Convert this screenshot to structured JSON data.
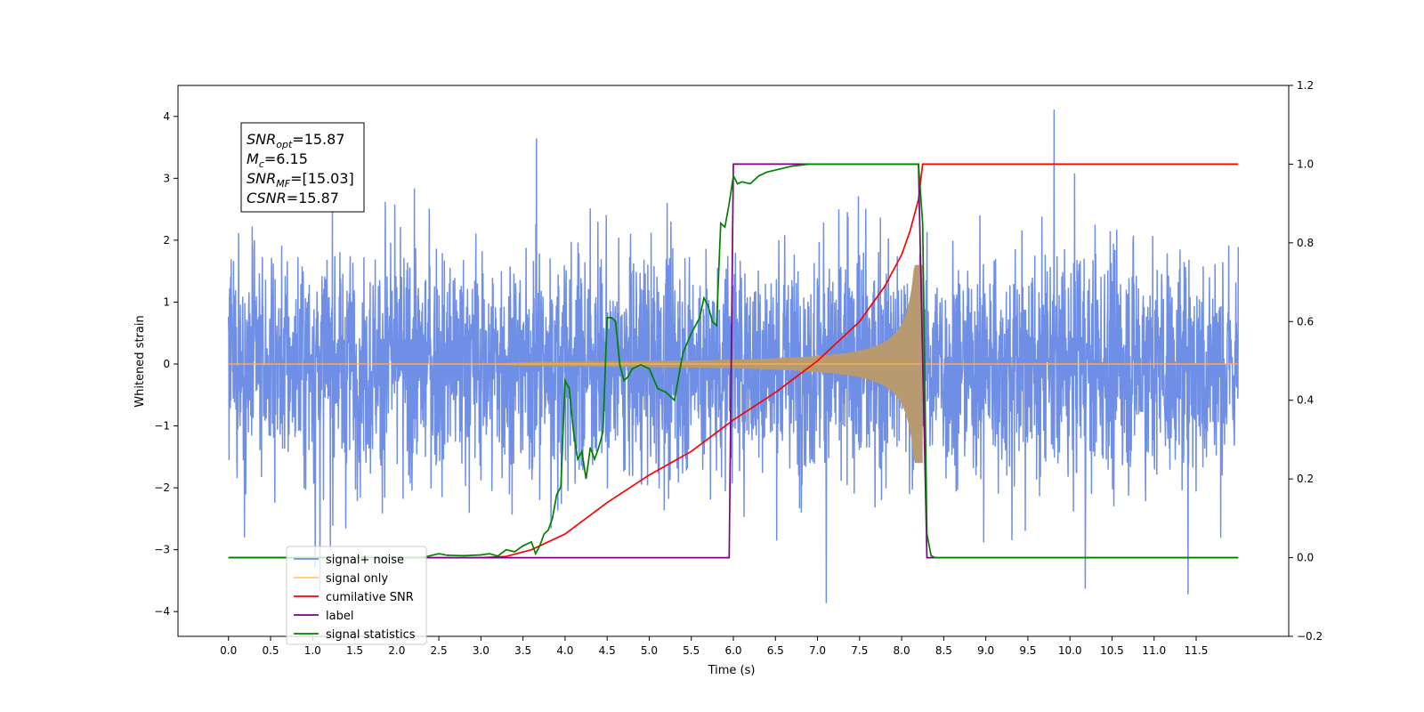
{
  "chart_data": {
    "type": "line",
    "xlabel": "Time (s)",
    "ylabel": "Whitened strain",
    "xlim": [
      -0.6,
      12.6
    ],
    "ylim": [
      -4.4,
      4.5
    ],
    "y2lim": [
      -0.2,
      1.2
    ],
    "x_ticks": [
      "0.0",
      "0.5",
      "1.0",
      "1.5",
      "2.0",
      "2.5",
      "3.0",
      "3.5",
      "4.0",
      "4.5",
      "5.0",
      "5.5",
      "6.0",
      "6.5",
      "7.0",
      "7.5",
      "8.0",
      "8.5",
      "9.0",
      "9.5",
      "10.0",
      "10.5",
      "11.0",
      "11.5"
    ],
    "y_ticks": [
      "4",
      "3",
      "2",
      "1",
      "0",
      "−1",
      "−2",
      "−3",
      "−4"
    ],
    "y2_ticks": [
      "1.2",
      "1.0",
      "0.8",
      "0.6",
      "0.4",
      "0.2",
      "0.0",
      "−0.2"
    ],
    "grid": false,
    "legend_position": "lower-left",
    "annotation": [
      {
        "name": "SNR",
        "sub": "opt",
        "value": "=15.87"
      },
      {
        "name": "M",
        "sub": "c",
        "value": "=6.15"
      },
      {
        "name": "SNR",
        "sub": "MF",
        "value": "=[15.03]"
      },
      {
        "name": "CSNR",
        "sub": "",
        "value": "=15.87"
      }
    ],
    "noise": {
      "x_range": [
        0.0,
        12.0
      ],
      "sigma": 0.9,
      "peak_range": [
        -3.9,
        4.1
      ]
    },
    "chirp": {
      "x_start": 2.9,
      "x_merger": 8.25,
      "amplitude_at_merger": 1.6,
      "amplitude_at_5s": 0.05
    },
    "series": [
      {
        "name": "signal+ noise",
        "color": "#6f8ee6",
        "axis": "left"
      },
      {
        "name": "signal only",
        "color": "#ffb74d",
        "axis": "left"
      },
      {
        "name": "cumilative SNR",
        "color": "#ff0000",
        "axis": "right",
        "x": [
          0.0,
          3.0,
          3.3,
          3.6,
          4.0,
          4.5,
          5.0,
          5.5,
          6.0,
          6.5,
          7.0,
          7.5,
          7.8,
          8.0,
          8.1,
          8.2,
          8.25,
          8.3,
          12.0
        ],
        "y": [
          0.0,
          0.0,
          0.003,
          0.02,
          0.06,
          0.14,
          0.21,
          0.27,
          0.35,
          0.42,
          0.5,
          0.6,
          0.69,
          0.77,
          0.83,
          0.91,
          1.0,
          1.0,
          1.0
        ]
      },
      {
        "name": "label",
        "color": "#800080",
        "axis": "right",
        "x": [
          0.0,
          5.95,
          6.0,
          8.2,
          8.3,
          12.0
        ],
        "y": [
          0.0,
          0.0,
          1.0,
          1.0,
          0.0,
          0.0
        ]
      },
      {
        "name": "signal statistics",
        "color": "#008000",
        "axis": "right",
        "x": [
          0.0,
          2.3,
          2.5,
          2.6,
          2.8,
          3.0,
          3.1,
          3.2,
          3.3,
          3.4,
          3.5,
          3.6,
          3.65,
          3.7,
          3.75,
          3.8,
          3.85,
          3.9,
          3.95,
          4.0,
          4.05,
          4.1,
          4.15,
          4.2,
          4.25,
          4.3,
          4.35,
          4.4,
          4.45,
          4.5,
          4.55,
          4.6,
          4.65,
          4.7,
          4.75,
          4.8,
          4.9,
          5.0,
          5.1,
          5.2,
          5.3,
          5.4,
          5.5,
          5.6,
          5.65,
          5.7,
          5.75,
          5.8,
          5.85,
          5.9,
          5.95,
          6.0,
          6.05,
          6.1,
          6.2,
          6.3,
          6.4,
          6.5,
          6.7,
          6.9,
          8.2,
          8.25,
          8.3,
          8.35,
          8.4,
          12.0
        ],
        "y": [
          0.0,
          0.0,
          0.01,
          0.006,
          0.005,
          0.007,
          0.01,
          0.004,
          0.02,
          0.015,
          0.03,
          0.04,
          0.01,
          0.03,
          0.06,
          0.07,
          0.1,
          0.16,
          0.18,
          0.45,
          0.43,
          0.32,
          0.25,
          0.27,
          0.2,
          0.28,
          0.25,
          0.28,
          0.32,
          0.61,
          0.61,
          0.6,
          0.49,
          0.45,
          0.46,
          0.48,
          0.49,
          0.48,
          0.43,
          0.42,
          0.4,
          0.52,
          0.57,
          0.61,
          0.66,
          0.64,
          0.6,
          0.59,
          0.85,
          0.84,
          0.9,
          0.97,
          0.95,
          0.955,
          0.95,
          0.97,
          0.98,
          0.985,
          0.995,
          1.0,
          1.0,
          0.85,
          0.06,
          0.005,
          0.0,
          0.0
        ]
      }
    ]
  }
}
